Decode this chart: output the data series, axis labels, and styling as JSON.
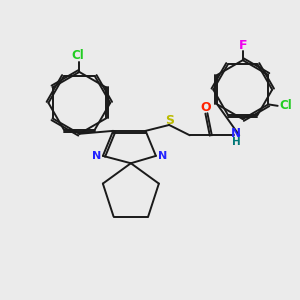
{
  "bg_color": "#ebebeb",
  "bond_color": "#1a1a1a",
  "atom_colors": {
    "Cl_left": "#22cc22",
    "Cl_right": "#22cc22",
    "F": "#ee00ee",
    "N": "#2222ff",
    "O": "#ff2200",
    "S": "#bbbb00",
    "NH": "#007777",
    "C": "#1a1a1a"
  },
  "figsize": [
    3.0,
    3.0
  ],
  "dpi": 100
}
